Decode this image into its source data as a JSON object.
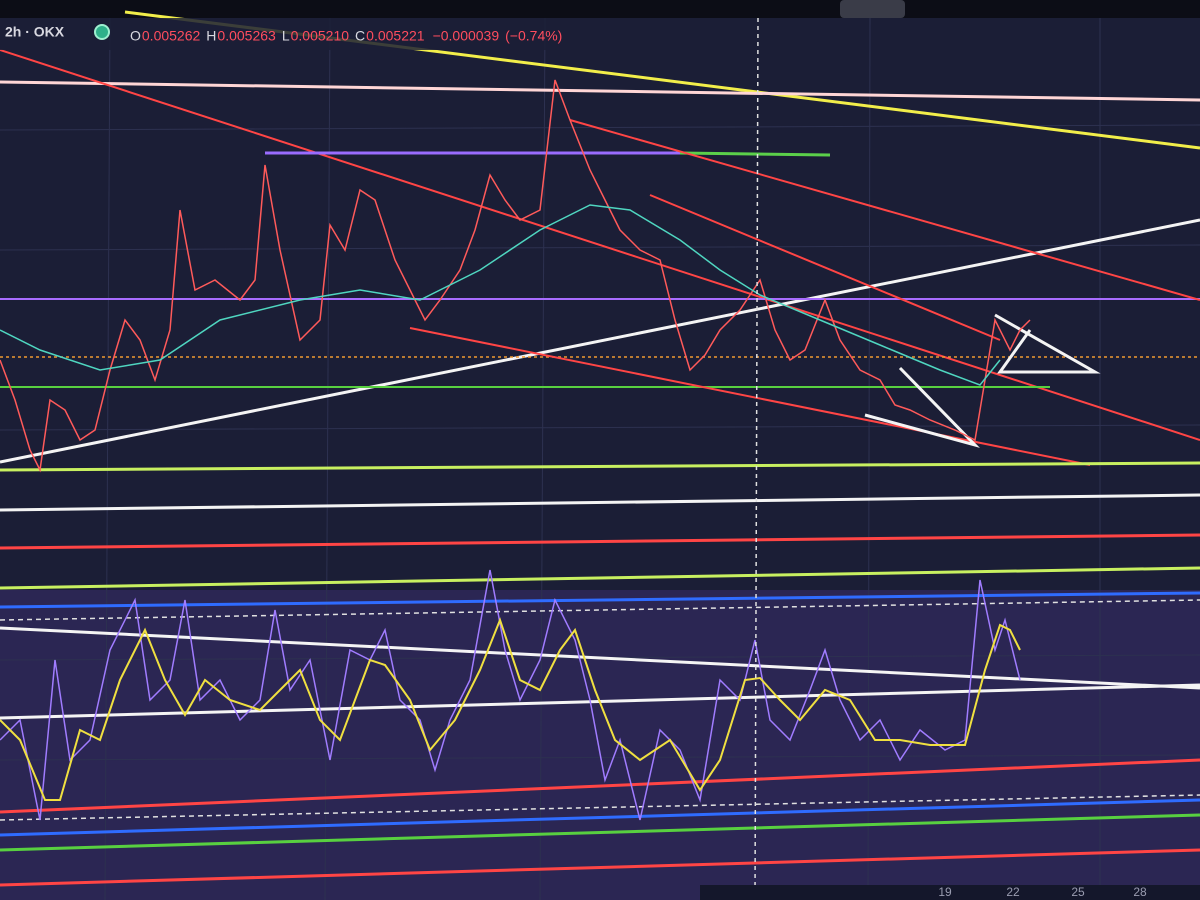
{
  "header": {
    "symbol": "2h · OKX",
    "ohlc": [
      {
        "label": "O",
        "value": "0.005262"
      },
      {
        "label": "H",
        "value": "0.005263"
      },
      {
        "label": "L",
        "value": "0.005210"
      },
      {
        "label": "C",
        "value": "0.005221"
      }
    ],
    "change": "−0.000039",
    "change_pct": "(−0.74%)"
  },
  "x_axis": {
    "labels": [
      "19",
      "22",
      "25",
      "28"
    ]
  }
}
